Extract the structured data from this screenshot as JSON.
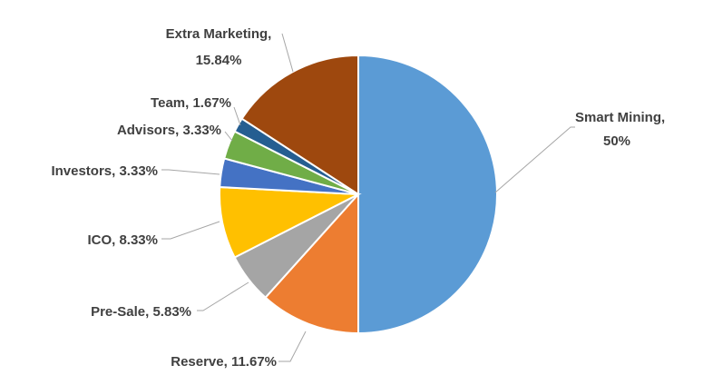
{
  "chart_data": {
    "type": "pie",
    "title": "",
    "slices": [
      {
        "label": "Smart Mining",
        "value": 50,
        "display": "50%",
        "color": "#5b9bd5"
      },
      {
        "label": "Reserve",
        "value": 11.67,
        "display": "11.67%",
        "color": "#ed7d31"
      },
      {
        "label": "Pre-Sale",
        "value": 5.83,
        "display": "5.83%",
        "color": "#a5a5a5"
      },
      {
        "label": "ICO",
        "value": 8.33,
        "display": "8.33%",
        "color": "#ffc000"
      },
      {
        "label": "Investors",
        "value": 3.33,
        "display": "3.33%",
        "color": "#4472c4"
      },
      {
        "label": "Advisors",
        "value": 3.33,
        "display": "3.33%",
        "color": "#70ad47"
      },
      {
        "label": "Team",
        "value": 1.67,
        "display": "1.67%",
        "color": "#255e91"
      },
      {
        "label": "Extra Marketing",
        "value": 15.84,
        "display": "15.84%",
        "color": "#9e480e"
      }
    ]
  },
  "labels": {
    "smart_mining_1": "Smart Mining,",
    "smart_mining_2": "50%",
    "reserve": "Reserve, 11.67%",
    "pre_sale": "Pre-Sale, 5.83%",
    "ico": "ICO, 8.33%",
    "investors": "Investors, 3.33%",
    "advisors": "Advisors, 3.33%",
    "team": "Team, 1.67%",
    "extra_marketing_1": "Extra Marketing,",
    "extra_marketing_2": "15.84%"
  }
}
